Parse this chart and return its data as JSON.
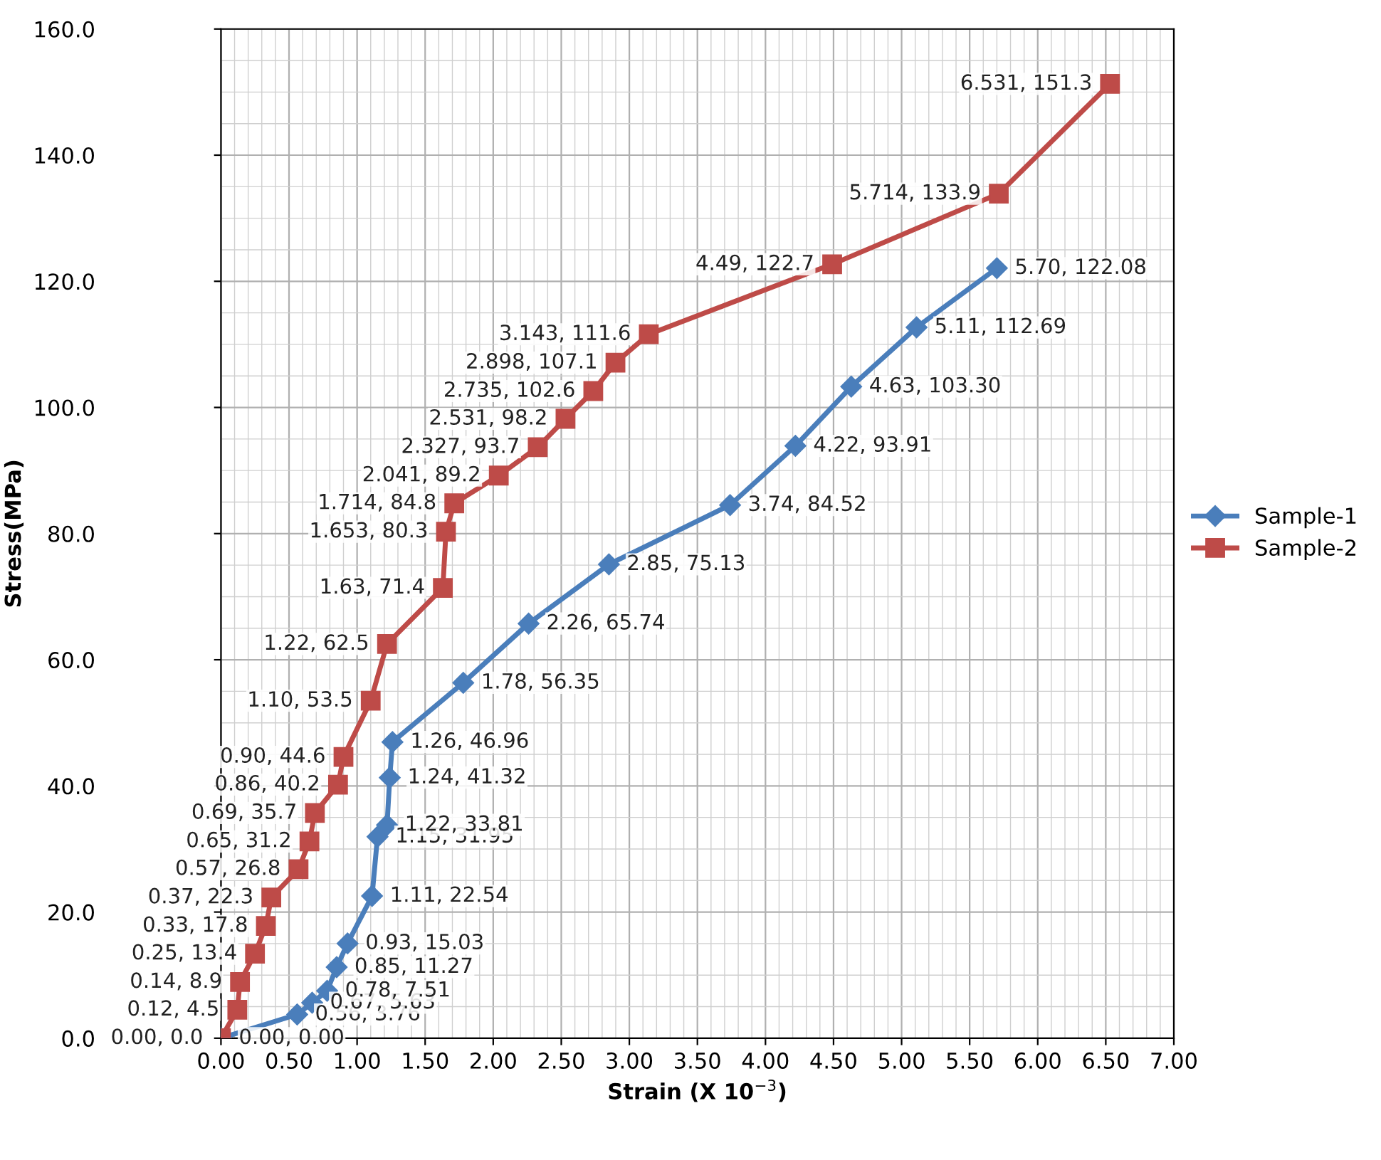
{
  "chart_data": {
    "type": "line",
    "xlabel": "Strain (X 10$^{−3}$)",
    "ylabel": "Stress(MPa)",
    "xlim": [
      0,
      7
    ],
    "ylim": [
      0,
      160
    ],
    "xticks": [
      {
        "value": 0,
        "label": "0.00"
      },
      {
        "value": 0.5,
        "label": "0.50"
      },
      {
        "value": 1,
        "label": "1.00"
      },
      {
        "value": 1.5,
        "label": "1.50"
      },
      {
        "value": 2,
        "label": "2.00"
      },
      {
        "value": 2.5,
        "label": "2.50"
      },
      {
        "value": 3,
        "label": "3.00"
      },
      {
        "value": 3.5,
        "label": "3.50"
      },
      {
        "value": 4,
        "label": "4.00"
      },
      {
        "value": 4.5,
        "label": "4.50"
      },
      {
        "value": 5,
        "label": "5.00"
      },
      {
        "value": 5.5,
        "label": "5.50"
      },
      {
        "value": 6,
        "label": "6.00"
      },
      {
        "value": 6.5,
        "label": "6.50"
      },
      {
        "value": 7,
        "label": "7.00"
      }
    ],
    "yticks": [
      {
        "value": 0,
        "label": "0.0"
      },
      {
        "value": 20,
        "label": "20.0"
      },
      {
        "value": 40,
        "label": "40.0"
      },
      {
        "value": 60,
        "label": "60.0"
      },
      {
        "value": 80,
        "label": "80.0"
      },
      {
        "value": 100,
        "label": "100.0"
      },
      {
        "value": 120,
        "label": "120.0"
      },
      {
        "value": 140,
        "label": "140.0"
      },
      {
        "value": 160,
        "label": "160.0"
      }
    ],
    "grid": true,
    "legend": "right",
    "line_style": "solid",
    "series": [
      {
        "name": "Sample-1",
        "color": "#4a7ebb",
        "marker": "diamond",
        "x": [
          0,
          0.56,
          0.67,
          0.78,
          0.85,
          0.93,
          1.11,
          1.15,
          1.22,
          1.24,
          1.26,
          1.78,
          2.26,
          2.85,
          3.74,
          4.22,
          4.63,
          5.11,
          5.7
        ],
        "values": [
          0,
          3.76,
          5.63,
          7.51,
          11.27,
          15.03,
          22.54,
          31.95,
          33.81,
          41.32,
          46.96,
          56.35,
          65.74,
          75.13,
          84.52,
          93.91,
          103.3,
          112.69,
          122.08
        ],
        "value_labels": [
          "0.00, 0.00",
          "0.56, 3.76",
          "0.67, 5.63",
          "0.78, 7.51",
          "0.85, 11.27",
          "0.93, 15.03",
          "1.11, 22.54",
          "1.15, 31.95",
          "1.22, 33.81",
          "1.24, 41.32",
          "1.26, 46.96",
          "1.78, 56.35",
          "2.26, 65.74",
          "2.85, 75.13",
          "3.74, 84.52",
          "4.22, 93.91",
          "4.63, 103.30",
          "5.11, 112.69",
          "5.70, 122.08"
        ]
      },
      {
        "name": "Sample-2",
        "color": "#be4b48",
        "marker": "square",
        "x": [
          0,
          0.12,
          0.14,
          0.25,
          0.33,
          0.37,
          0.57,
          0.65,
          0.69,
          0.86,
          0.9,
          1.1,
          1.22,
          1.63,
          1.653,
          1.714,
          2.041,
          2.327,
          2.531,
          2.735,
          2.898,
          3.143,
          4.49,
          5.714,
          6.531
        ],
        "values": [
          0,
          4.5,
          8.9,
          13.4,
          17.8,
          22.3,
          26.8,
          31.2,
          35.7,
          40.2,
          44.6,
          53.5,
          62.5,
          71.4,
          80.3,
          84.8,
          89.2,
          93.7,
          98.2,
          102.6,
          107.1,
          111.6,
          122.7,
          133.9,
          151.3
        ],
        "value_labels": [
          "0.00, 0.0",
          "0.12, 4.5",
          "0.14, 8.9",
          "0.25, 13.4",
          "0.33, 17.8",
          "0.37, 22.3",
          "0.57, 26.8",
          "0.65, 31.2",
          "0.69, 35.7",
          "0.86, 40.2",
          "0.90, 44.6",
          "1.10, 53.5",
          "1.22, 62.5",
          "1.63, 71.4",
          "1.653, 80.3",
          "1.714, 84.8",
          "2.041, 89.2",
          "2.327, 93.7",
          "2.531, 98.2",
          "2.735, 102.6",
          "2.898, 107.1",
          "3.143, 111.6",
          "4.49, 122.7",
          "5.714, 133.9",
          "6.531, 151.3"
        ]
      }
    ]
  }
}
